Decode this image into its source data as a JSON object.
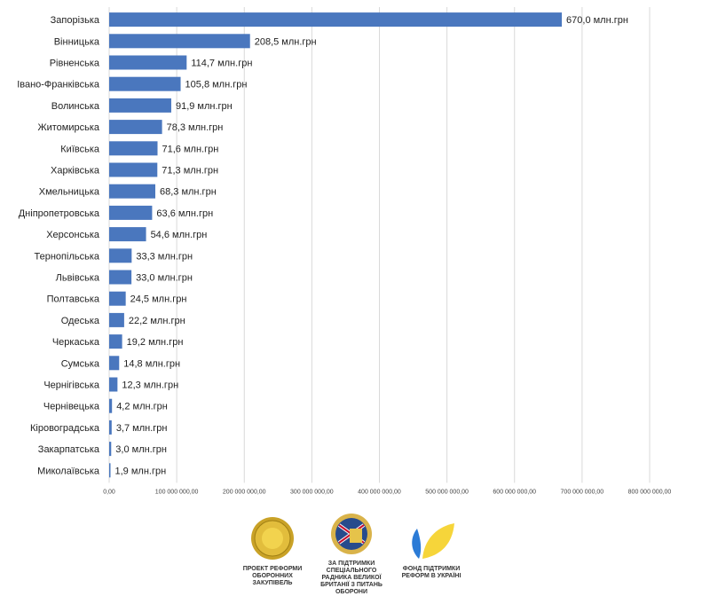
{
  "chart_data": {
    "type": "bar",
    "orientation": "horizontal",
    "title": "",
    "xlabel": "",
    "ylabel": "",
    "xlim": [
      0,
      800000000
    ],
    "grid": true,
    "categories": [
      "Запорізька",
      "Вінницька",
      "Рівненська",
      "Івано-Франківська",
      "Волинська",
      "Житомирська",
      "Київська",
      "Харківська",
      "Хмельницька",
      "Дніпропетровська",
      "Херсонська",
      "Тернопільська",
      "Львівська",
      "Полтавська",
      "Одеська",
      "Черкаська",
      "Сумська",
      "Чернігівська",
      "Чернівецька",
      "Кіровоградська",
      "Закарпатська",
      "Миколаївська"
    ],
    "values": [
      670000000,
      208500000,
      114700000,
      105800000,
      91900000,
      78300000,
      71600000,
      71300000,
      68300000,
      63600000,
      54600000,
      33300000,
      33000000,
      24500000,
      22200000,
      19200000,
      14800000,
      12300000,
      4200000,
      3700000,
      3000000,
      1900000
    ],
    "value_labels": [
      "670,0 млн.грн",
      "208,5 млн.грн",
      "114,7 млн.грн",
      "105,8 млн.грн",
      "91,9 млн.грн",
      "78,3 млн.грн",
      "71,6 млн.грн",
      "71,3 млн.грн",
      "68,3 млн.грн",
      "63,6 млн.грн",
      "54,6 млн.грн",
      "33,3 млн.грн",
      "33,0 млн.грн",
      "24,5 млн.грн",
      "22,2 млн.грн",
      "19,2 млн.грн",
      "14,8 млн.грн",
      "12,3 млн.грн",
      "4,2 млн.грн",
      "3,7 млн.грн",
      "3,0 млн.грн",
      "1,9 млн.грн"
    ],
    "ticks": [
      0,
      100000000,
      200000000,
      300000000,
      400000000,
      500000000,
      600000000,
      700000000,
      800000000
    ],
    "tick_labels": [
      "0,00",
      "100 000 000,00",
      "200 000 000,00",
      "300 000 000,00",
      "400 000 000,00",
      "500 000 000,00",
      "600 000 000,00",
      "700 000 000,00",
      "800 000 000,00"
    ],
    "colors": {
      "bar": "#4a77be"
    }
  },
  "logos": [
    {
      "icon": "gold-seal-icon",
      "caption": "ПРОЕКТ РЕФОРМИ ОБОРОННИХ ЗАКУПІВЕЛЬ"
    },
    {
      "icon": "emblem-icon",
      "caption": "ЗА ПІДТРИМКИ СПЕЦІАЛЬНОГО РАДНИКА ВЕЛИКОЇ БРИТАНІЇ З ПИТАНЬ ОБОРОНИ"
    },
    {
      "icon": "blue-yellow-leaf-icon",
      "caption": "ФОНД ПІДТРИМКИ РЕФОРМ В УКРАЇНІ"
    }
  ]
}
